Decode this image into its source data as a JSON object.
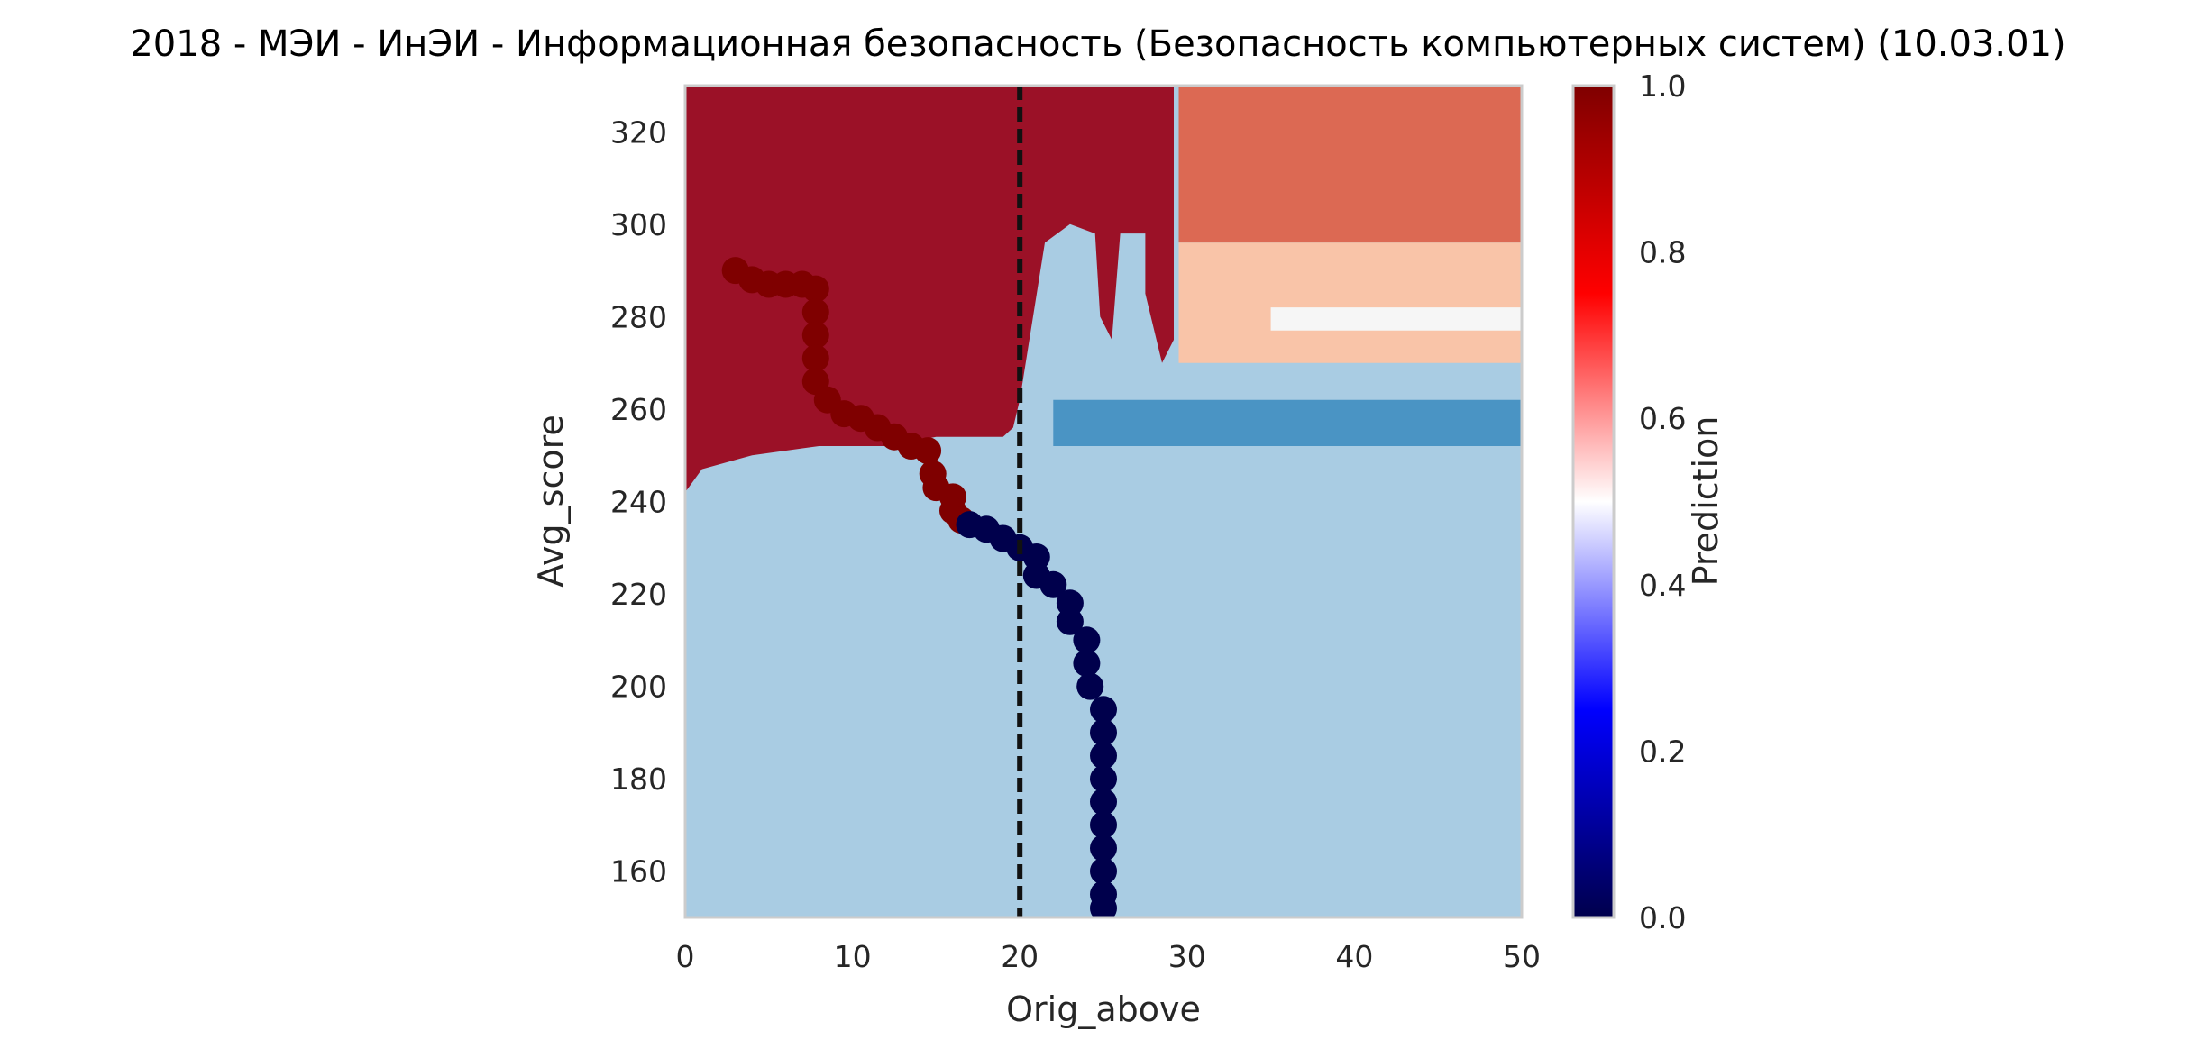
{
  "chart_data": {
    "type": "heatmap",
    "title": "2018 - МЭИ - ИнЭИ - Информационная безопасность (Безопасность компьютерных систем) (10.03.01)",
    "xlabel": "Orig_above",
    "ylabel": "Avg_score",
    "xlim": [
      0,
      50
    ],
    "ylim": [
      150,
      330
    ],
    "x_ticks": [
      "0",
      "10",
      "20",
      "30",
      "40",
      "50"
    ],
    "y_ticks": [
      "160",
      "180",
      "200",
      "220",
      "240",
      "260",
      "280",
      "300",
      "320"
    ],
    "grid": false,
    "vline": {
      "x": 20,
      "style": "dashed",
      "color": "#111111"
    },
    "colorbar": {
      "label": "Prediction",
      "range": [
        0.0,
        1.0
      ],
      "ticks": [
        "0.0",
        "0.2",
        "0.4",
        "0.6",
        "0.8",
        "1.0"
      ],
      "colormap": "seismic"
    },
    "contour_colors": {
      "0.0-0.2": "#1c5697",
      "0.2-0.3": "#4a94c4",
      "0.3-0.4": "#b1d5e8",
      "0.4-0.5": "#f6f6f6",
      "0.5-0.6": "#f9c4a8",
      "0.6-0.8": "#dc6953",
      "0.8-1.0": "#9b1127"
    },
    "regions": [
      {
        "level": "0.8-1.0",
        "polygon": [
          [
            0,
            330
          ],
          [
            29.2,
            330
          ],
          [
            29.2,
            275
          ],
          [
            28.5,
            270
          ],
          [
            27.5,
            285
          ],
          [
            27.5,
            298
          ],
          [
            26,
            298
          ],
          [
            25.5,
            275
          ],
          [
            24.8,
            280
          ],
          [
            24.5,
            298
          ],
          [
            23,
            300
          ],
          [
            21.5,
            296
          ],
          [
            20,
            262
          ],
          [
            19.6,
            256
          ],
          [
            19,
            254
          ],
          [
            15,
            254
          ],
          [
            12,
            252
          ],
          [
            8,
            252
          ],
          [
            4,
            250
          ],
          [
            1,
            247
          ],
          [
            0,
            242
          ]
        ]
      },
      {
        "level": "0.6-0.8",
        "polygon": [
          [
            29.5,
            330
          ],
          [
            50,
            330
          ],
          [
            50,
            296
          ],
          [
            29.5,
            296
          ]
        ]
      },
      {
        "level": "0.5-0.6",
        "polygon": [
          [
            29.5,
            296
          ],
          [
            50,
            296
          ],
          [
            50,
            270
          ],
          [
            29.5,
            270
          ]
        ]
      },
      {
        "level": "0.4-0.5",
        "polygon": [
          [
            35,
            282
          ],
          [
            50,
            282
          ],
          [
            50,
            277
          ],
          [
            35,
            277
          ]
        ]
      },
      {
        "level": "0.2-0.3",
        "polygon": [
          [
            22,
            262
          ],
          [
            50,
            262
          ],
          [
            50,
            252
          ],
          [
            22,
            252
          ]
        ]
      }
    ],
    "series": [
      {
        "name": "",
        "marker": "circle",
        "points": [
          {
            "x": 3,
            "y": 290,
            "p": 1
          },
          {
            "x": 4,
            "y": 288,
            "p": 1
          },
          {
            "x": 5,
            "y": 287,
            "p": 1
          },
          {
            "x": 6,
            "y": 287,
            "p": 1
          },
          {
            "x": 7,
            "y": 287,
            "p": 1
          },
          {
            "x": 7.8,
            "y": 286,
            "p": 1
          },
          {
            "x": 7.8,
            "y": 281,
            "p": 1
          },
          {
            "x": 7.8,
            "y": 276,
            "p": 1
          },
          {
            "x": 7.8,
            "y": 271,
            "p": 1
          },
          {
            "x": 7.8,
            "y": 266,
            "p": 1
          },
          {
            "x": 8.5,
            "y": 262,
            "p": 1
          },
          {
            "x": 9.5,
            "y": 259,
            "p": 1
          },
          {
            "x": 10.5,
            "y": 258,
            "p": 1
          },
          {
            "x": 11.5,
            "y": 256,
            "p": 1
          },
          {
            "x": 12.5,
            "y": 254,
            "p": 1
          },
          {
            "x": 13.5,
            "y": 252,
            "p": 1
          },
          {
            "x": 14.5,
            "y": 251,
            "p": 1
          },
          {
            "x": 14.8,
            "y": 246,
            "p": 1
          },
          {
            "x": 15,
            "y": 243,
            "p": 1
          },
          {
            "x": 16,
            "y": 241,
            "p": 1
          },
          {
            "x": 16,
            "y": 238,
            "p": 1
          },
          {
            "x": 16.5,
            "y": 236,
            "p": 1
          },
          {
            "x": 17,
            "y": 235,
            "p": 0
          },
          {
            "x": 18,
            "y": 234,
            "p": 0
          },
          {
            "x": 19,
            "y": 232,
            "p": 0
          },
          {
            "x": 20,
            "y": 230,
            "p": 0
          },
          {
            "x": 21,
            "y": 228,
            "p": 0
          },
          {
            "x": 21,
            "y": 224,
            "p": 0
          },
          {
            "x": 22,
            "y": 222,
            "p": 0
          },
          {
            "x": 23,
            "y": 218,
            "p": 0
          },
          {
            "x": 23,
            "y": 214,
            "p": 0
          },
          {
            "x": 24,
            "y": 210,
            "p": 0
          },
          {
            "x": 24,
            "y": 205,
            "p": 0
          },
          {
            "x": 24.2,
            "y": 200,
            "p": 0
          },
          {
            "x": 25,
            "y": 195,
            "p": 0
          },
          {
            "x": 25,
            "y": 190,
            "p": 0
          },
          {
            "x": 25,
            "y": 185,
            "p": 0
          },
          {
            "x": 25,
            "y": 180,
            "p": 0
          },
          {
            "x": 25,
            "y": 175,
            "p": 0
          },
          {
            "x": 25,
            "y": 170,
            "p": 0
          },
          {
            "x": 25,
            "y": 165,
            "p": 0
          },
          {
            "x": 25,
            "y": 160,
            "p": 0
          },
          {
            "x": 25,
            "y": 155,
            "p": 0
          },
          {
            "x": 25,
            "y": 152,
            "p": 0
          }
        ]
      }
    ]
  }
}
